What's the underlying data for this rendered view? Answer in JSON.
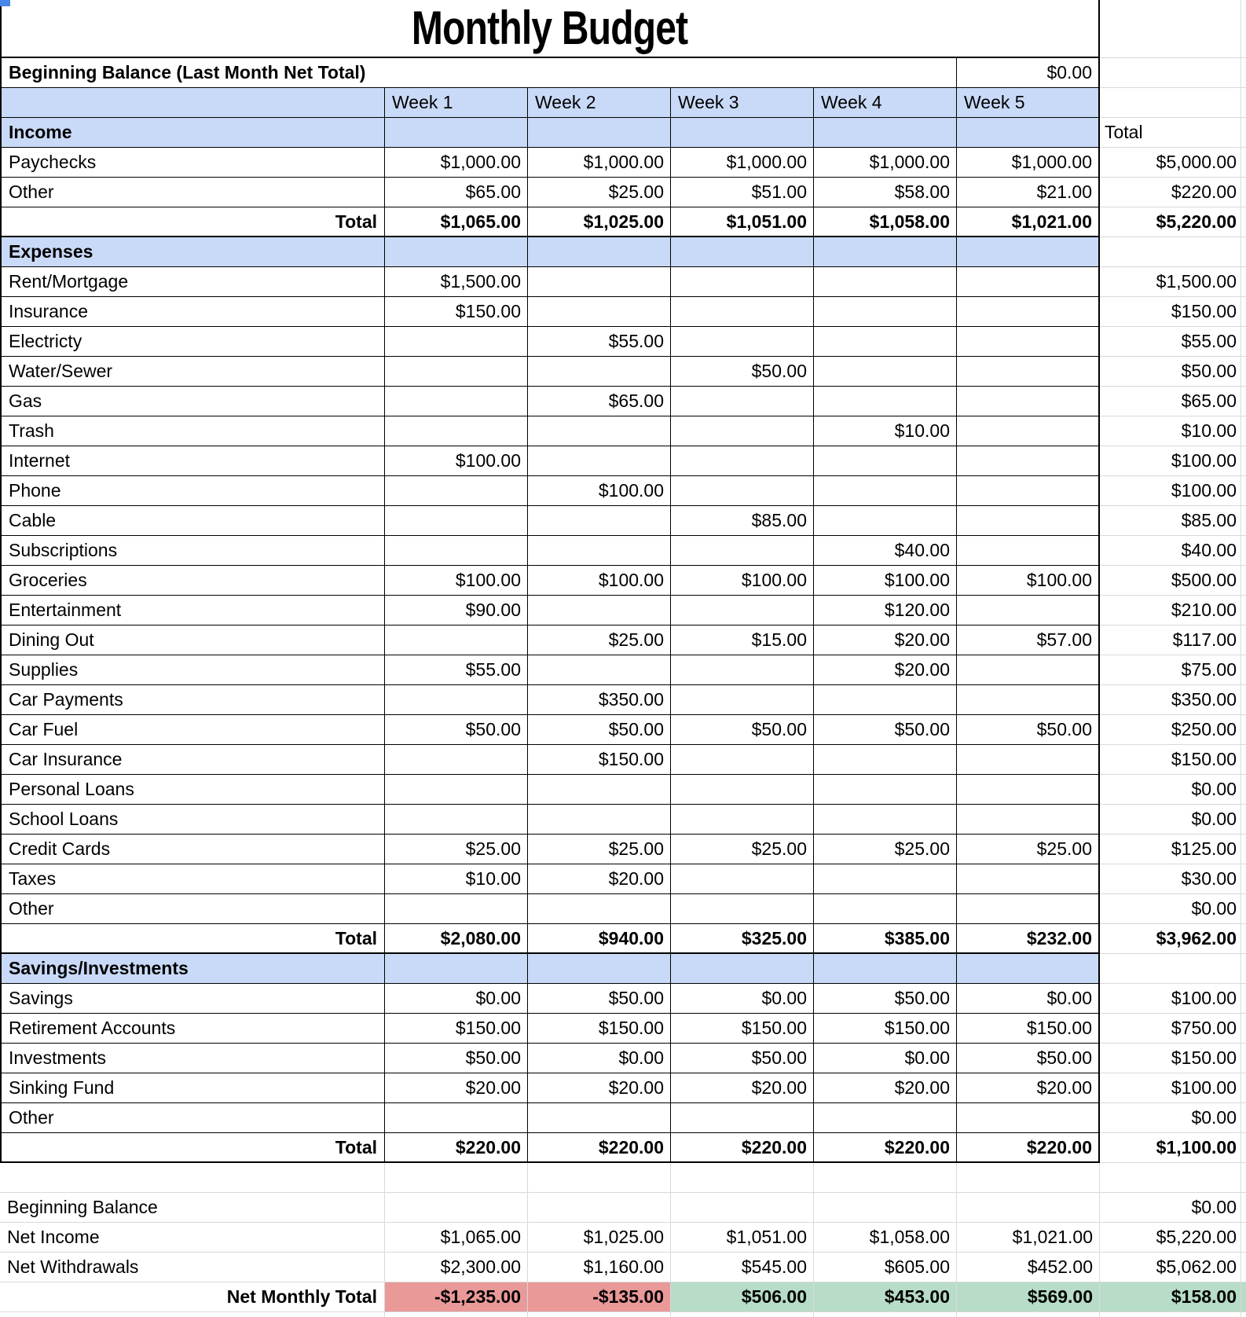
{
  "title": "Monthly Budget",
  "beginning_balance": {
    "label": "Beginning Balance (Last Month Net Total)",
    "value": "$0.00"
  },
  "week_headers": [
    "Week 1",
    "Week 2",
    "Week 3",
    "Week 4",
    "Week 5"
  ],
  "total_header": "Total",
  "sections": [
    {
      "name": "Income",
      "rows": [
        {
          "label": "Paychecks",
          "values": [
            "$1,000.00",
            "$1,000.00",
            "$1,000.00",
            "$1,000.00",
            "$1,000.00"
          ],
          "total": "$5,000.00"
        },
        {
          "label": "Other",
          "values": [
            "$65.00",
            "$25.00",
            "$51.00",
            "$58.00",
            "$21.00"
          ],
          "total": "$220.00"
        }
      ],
      "total_row": {
        "label": "Total",
        "values": [
          "$1,065.00",
          "$1,025.00",
          "$1,051.00",
          "$1,058.00",
          "$1,021.00"
        ],
        "total": "$5,220.00"
      }
    },
    {
      "name": "Expenses",
      "rows": [
        {
          "label": "Rent/Mortgage",
          "values": [
            "$1,500.00",
            "",
            "",
            "",
            ""
          ],
          "total": "$1,500.00"
        },
        {
          "label": "Insurance",
          "values": [
            "$150.00",
            "",
            "",
            "",
            ""
          ],
          "total": "$150.00"
        },
        {
          "label": "Electricty",
          "values": [
            "",
            "$55.00",
            "",
            "",
            ""
          ],
          "total": "$55.00"
        },
        {
          "label": "Water/Sewer",
          "values": [
            "",
            "",
            "$50.00",
            "",
            ""
          ],
          "total": "$50.00"
        },
        {
          "label": "Gas",
          "values": [
            "",
            "$65.00",
            "",
            "",
            ""
          ],
          "total": "$65.00"
        },
        {
          "label": "Trash",
          "values": [
            "",
            "",
            "",
            "$10.00",
            ""
          ],
          "total": "$10.00"
        },
        {
          "label": "Internet",
          "values": [
            "$100.00",
            "",
            "",
            "",
            ""
          ],
          "total": "$100.00"
        },
        {
          "label": "Phone",
          "values": [
            "",
            "$100.00",
            "",
            "",
            ""
          ],
          "total": "$100.00"
        },
        {
          "label": "Cable",
          "values": [
            "",
            "",
            "$85.00",
            "",
            ""
          ],
          "total": "$85.00"
        },
        {
          "label": "Subscriptions",
          "values": [
            "",
            "",
            "",
            "$40.00",
            ""
          ],
          "total": "$40.00"
        },
        {
          "label": "Groceries",
          "values": [
            "$100.00",
            "$100.00",
            "$100.00",
            "$100.00",
            "$100.00"
          ],
          "total": "$500.00"
        },
        {
          "label": "Entertainment",
          "values": [
            "$90.00",
            "",
            "",
            "$120.00",
            ""
          ],
          "total": "$210.00"
        },
        {
          "label": "Dining Out",
          "values": [
            "",
            "$25.00",
            "$15.00",
            "$20.00",
            "$57.00"
          ],
          "total": "$117.00"
        },
        {
          "label": "Supplies",
          "values": [
            "$55.00",
            "",
            "",
            "$20.00",
            ""
          ],
          "total": "$75.00"
        },
        {
          "label": "Car Payments",
          "values": [
            "",
            "$350.00",
            "",
            "",
            ""
          ],
          "total": "$350.00"
        },
        {
          "label": "Car Fuel",
          "values": [
            "$50.00",
            "$50.00",
            "$50.00",
            "$50.00",
            "$50.00"
          ],
          "total": "$250.00"
        },
        {
          "label": "Car Insurance",
          "values": [
            "",
            "$150.00",
            "",
            "",
            ""
          ],
          "total": "$150.00"
        },
        {
          "label": "Personal Loans",
          "values": [
            "",
            "",
            "",
            "",
            ""
          ],
          "total": "$0.00"
        },
        {
          "label": "School Loans",
          "values": [
            "",
            "",
            "",
            "",
            ""
          ],
          "total": "$0.00"
        },
        {
          "label": "Credit Cards",
          "values": [
            "$25.00",
            "$25.00",
            "$25.00",
            "$25.00",
            "$25.00"
          ],
          "total": "$125.00"
        },
        {
          "label": "Taxes",
          "values": [
            "$10.00",
            "$20.00",
            "",
            "",
            ""
          ],
          "total": "$30.00"
        },
        {
          "label": "Other",
          "values": [
            "",
            "",
            "",
            "",
            ""
          ],
          "total": "$0.00"
        }
      ],
      "total_row": {
        "label": "Total",
        "values": [
          "$2,080.00",
          "$940.00",
          "$325.00",
          "$385.00",
          "$232.00"
        ],
        "total": "$3,962.00"
      }
    },
    {
      "name": "Savings/Investments",
      "rows": [
        {
          "label": "Savings",
          "values": [
            "$0.00",
            "$50.00",
            "$0.00",
            "$50.00",
            "$0.00"
          ],
          "total": "$100.00"
        },
        {
          "label": "Retirement Accounts",
          "values": [
            "$150.00",
            "$150.00",
            "$150.00",
            "$150.00",
            "$150.00"
          ],
          "total": "$750.00"
        },
        {
          "label": "Investments",
          "values": [
            "$50.00",
            "$0.00",
            "$50.00",
            "$0.00",
            "$50.00"
          ],
          "total": "$150.00"
        },
        {
          "label": "Sinking Fund",
          "values": [
            "$20.00",
            "$20.00",
            "$20.00",
            "$20.00",
            "$20.00"
          ],
          "total": "$100.00"
        },
        {
          "label": "Other",
          "values": [
            "",
            "",
            "",
            "",
            ""
          ],
          "total": "$0.00"
        }
      ],
      "total_row": {
        "label": "Total",
        "values": [
          "$220.00",
          "$220.00",
          "$220.00",
          "$220.00",
          "$220.00"
        ],
        "total": "$1,100.00"
      }
    }
  ],
  "summary": {
    "rows": [
      {
        "label": "Beginning Balance",
        "values": [
          "",
          "",
          "",
          "",
          ""
        ],
        "total": "$0.00"
      },
      {
        "label": "Net Income",
        "values": [
          "$1,065.00",
          "$1,025.00",
          "$1,051.00",
          "$1,058.00",
          "$1,021.00"
        ],
        "total": "$5,220.00"
      },
      {
        "label": "Net Withdrawals",
        "values": [
          "$2,300.00",
          "$1,160.00",
          "$545.00",
          "$605.00",
          "$452.00"
        ],
        "total": "$5,062.00"
      }
    ],
    "net_monthly_total": {
      "label": "Net Monthly Total",
      "values": [
        "-$1,235.00",
        "-$135.00",
        "$506.00",
        "$453.00",
        "$569.00"
      ],
      "total": "$158.00",
      "statuses": [
        "negative",
        "negative",
        "positive",
        "positive",
        "positive",
        "positive"
      ]
    }
  },
  "colors": {
    "section_header_bg": "#c9daf8",
    "negative_bg": "#ea9999",
    "positive_bg": "#b7dcc8",
    "grid_line": "#d9d9d9",
    "table_border": "#000000",
    "selection_marker": "#4a86e8"
  }
}
